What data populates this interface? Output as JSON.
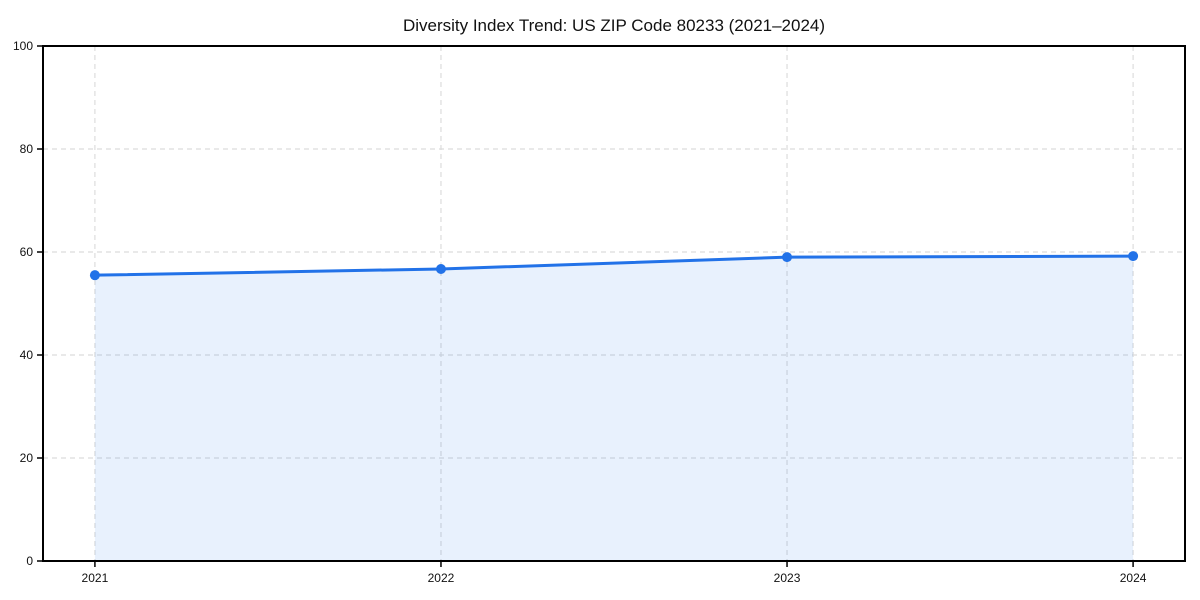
{
  "chart_data": {
    "type": "area",
    "title": "Diversity Index Trend: US ZIP Code 80233 (2021–2024)",
    "x": [
      2021,
      2022,
      2023,
      2024
    ],
    "xticks": [
      "2021",
      "2022",
      "2023",
      "2024"
    ],
    "series": [
      {
        "name": "Diversity Index",
        "values": [
          55.5,
          56.7,
          59.0,
          59.2
        ]
      }
    ],
    "xlabel": "",
    "ylabel": "",
    "ylim": [
      0,
      100
    ],
    "yticks": [
      0,
      20,
      40,
      60,
      80,
      100
    ],
    "x_margin_fraction": 0.05,
    "grid": true,
    "grid_style": "dashed",
    "legend": "none",
    "colors": {
      "line": "#2272e8",
      "marker": "#2272e8",
      "fill": "#2272e8",
      "fill_opacity": 0.1,
      "grid": "#dcdcdc",
      "spine": "#000000",
      "tick": "#000000",
      "text": "#111111",
      "background": "#ffffff"
    }
  }
}
